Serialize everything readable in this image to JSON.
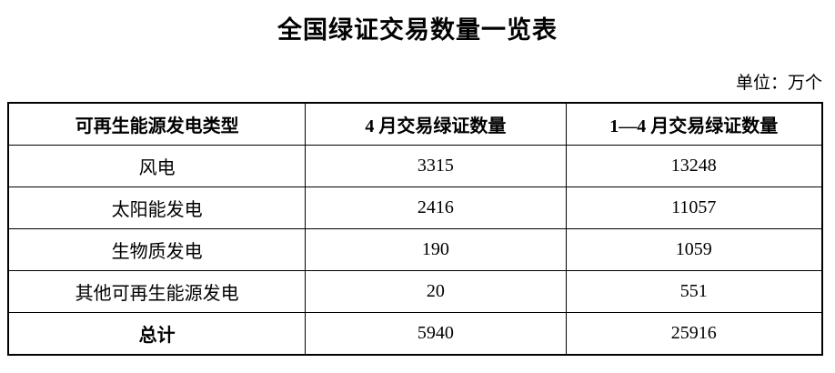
{
  "page": {
    "title": "全国绿证交易数量一览表",
    "unit_label": "单位：万个"
  },
  "colors": {
    "background": "#ffffff",
    "text": "#000000",
    "border": "#000000"
  },
  "table": {
    "headers": [
      "可再生能源发电类型",
      "4 月交易绿证数量",
      "1—4 月交易绿证数量"
    ],
    "rows": [
      [
        "风电",
        "3315",
        "13248"
      ],
      [
        "太阳能发电",
        "2416",
        "11057"
      ],
      [
        "生物质发电",
        "190",
        "1059"
      ],
      [
        "其他可再生能源发电",
        "20",
        "551"
      ],
      [
        "总计",
        "5940",
        "25916"
      ]
    ]
  }
}
